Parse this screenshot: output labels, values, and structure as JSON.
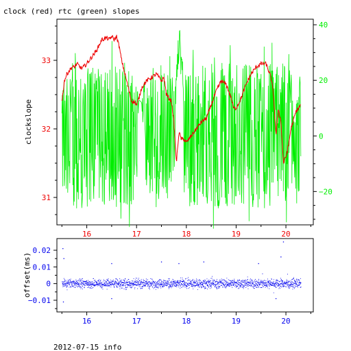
{
  "title": "clock (red) rtc (green) slopes",
  "footer": "2012-07-15 info",
  "colors": {
    "red": "#ee0000",
    "green": "#00ee00",
    "blue": "#0000ee",
    "axis": "#000000"
  },
  "chart_data": [
    {
      "type": "line",
      "title": "clock (red) rtc (green) slopes",
      "xlabel": "",
      "ylabel": "clockslope",
      "xlim": [
        15.4,
        20.55
      ],
      "ylim": [
        30.6,
        33.6
      ],
      "y2lim": [
        -32,
        42
      ],
      "x_ticks": [
        16,
        17,
        18,
        19,
        20
      ],
      "y_ticks": [
        31,
        32,
        33
      ],
      "y2_ticks": [
        -20,
        0,
        20,
        40
      ],
      "x_tick_labels": [
        "16",
        "17",
        "18",
        "19",
        "20"
      ],
      "y_tick_labels": [
        "31",
        "32",
        "33"
      ],
      "y2_tick_labels": [
        "−20",
        "0",
        "20",
        "40"
      ],
      "series": [
        {
          "name": "clock",
          "axis": "left",
          "color": "#ee0000",
          "x": [
            15.5,
            15.55,
            15.6,
            15.7,
            15.75,
            15.8,
            15.9,
            16.0,
            16.1,
            16.2,
            16.3,
            16.4,
            16.45,
            16.5,
            16.55,
            16.6,
            16.65,
            16.7,
            16.8,
            16.9,
            16.95,
            17.0,
            17.05,
            17.1,
            17.2,
            17.3,
            17.4,
            17.5,
            17.55,
            17.6,
            17.7,
            17.75,
            17.8,
            17.85,
            17.9,
            17.95,
            18.0,
            18.05,
            18.1,
            18.2,
            18.3,
            18.4,
            18.5,
            18.6,
            18.7,
            18.8,
            18.9,
            18.95,
            19.0,
            19.1,
            19.2,
            19.3,
            19.4,
            19.5,
            19.6,
            19.7,
            19.75,
            19.8,
            19.85,
            19.9,
            19.95,
            20.0,
            20.05,
            20.1,
            20.2,
            20.3
          ],
          "y": [
            32.4,
            32.7,
            32.8,
            32.9,
            32.9,
            32.95,
            32.88,
            32.95,
            33.05,
            33.15,
            33.3,
            33.33,
            33.3,
            33.35,
            33.3,
            33.35,
            33.2,
            33.0,
            32.7,
            32.4,
            32.4,
            32.35,
            32.45,
            32.6,
            32.7,
            32.75,
            32.8,
            32.7,
            32.75,
            32.5,
            32.4,
            32.1,
            31.5,
            31.95,
            31.85,
            31.85,
            31.8,
            31.85,
            31.9,
            32.0,
            32.1,
            32.15,
            32.35,
            32.55,
            32.7,
            32.65,
            32.45,
            32.3,
            32.3,
            32.45,
            32.65,
            32.8,
            32.9,
            32.95,
            32.95,
            32.75,
            32.5,
            31.9,
            32.3,
            32.1,
            31.5,
            31.6,
            31.75,
            32.0,
            32.25,
            32.35
          ]
        },
        {
          "name": "rtc",
          "axis": "right",
          "color": "#00ee00",
          "x": [
            15.5,
            15.6,
            15.8,
            16.0,
            16.2,
            16.4,
            16.6,
            16.8,
            17.0,
            17.05,
            17.1,
            17.2,
            17.3,
            17.5,
            17.6,
            17.7,
            17.75,
            17.8,
            17.85,
            17.9,
            17.95,
            18.0,
            18.2,
            18.4,
            18.6,
            18.8,
            19.0,
            19.2,
            19.4,
            19.6,
            19.8,
            20.0,
            20.2,
            20.3
          ],
          "y": [
            0,
            0,
            0,
            0,
            0,
            0,
            0,
            0,
            0,
            13,
            12,
            0,
            0,
            0,
            0,
            0,
            0,
            20,
            35,
            25,
            0,
            0,
            0,
            0,
            0,
            0,
            0,
            0,
            0,
            0,
            0,
            0,
            0,
            0
          ],
          "spread": [
            25,
            35,
            35,
            35,
            35,
            35,
            35,
            35,
            28,
            0,
            0,
            30,
            30,
            30,
            30,
            30,
            28,
            5,
            10,
            10,
            30,
            30,
            35,
            35,
            35,
            35,
            35,
            35,
            35,
            35,
            35,
            35,
            30,
            25
          ]
        }
      ]
    },
    {
      "type": "scatter",
      "title": "",
      "xlabel": "",
      "ylabel": "offset(ms)",
      "xlim": [
        15.4,
        20.55
      ],
      "ylim": [
        -0.017,
        0.027
      ],
      "x_ticks": [
        16,
        17,
        18,
        19,
        20
      ],
      "y_ticks": [
        -0.01,
        0,
        0.01,
        0.02
      ],
      "x_tick_labels": [
        "16",
        "17",
        "18",
        "19",
        "20"
      ],
      "y_tick_labels": [
        "−0.01",
        "0",
        "0.01",
        "0.02"
      ],
      "series": [
        {
          "name": "offset",
          "color": "#0000ee",
          "x_range": [
            15.5,
            20.3
          ],
          "typical_band": [
            -0.004,
            0.004
          ],
          "outliers": [
            {
              "x": 15.52,
              "y": 0.021
            },
            {
              "x": 15.53,
              "y": -0.011
            },
            {
              "x": 15.54,
              "y": 0.015
            },
            {
              "x": 16.5,
              "y": 0.012
            },
            {
              "x": 16.5,
              "y": -0.009
            },
            {
              "x": 17.5,
              "y": 0.013
            },
            {
              "x": 17.85,
              "y": 0.012
            },
            {
              "x": 18.35,
              "y": 0.013
            },
            {
              "x": 19.45,
              "y": 0.012
            },
            {
              "x": 19.95,
              "y": 0.025
            },
            {
              "x": 19.9,
              "y": 0.016
            },
            {
              "x": 19.8,
              "y": -0.009
            }
          ]
        }
      ]
    }
  ]
}
